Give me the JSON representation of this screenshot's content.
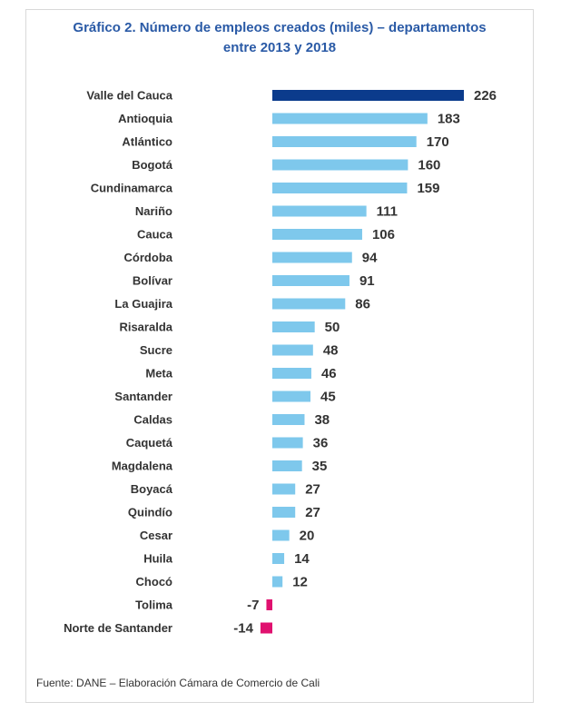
{
  "chart_data": {
    "type": "bar",
    "orientation": "horizontal",
    "title_line1": "Gráfico 2. Número de empleos creados (miles) – departamentos",
    "title_line2": "entre 2013 y 2018",
    "xlabel": "",
    "ylabel": "",
    "categories": [
      "Valle del Cauca",
      "Antioquia",
      "Atlántico",
      "Bogotá",
      "Cundinamarca",
      "Nariño",
      "Cauca",
      "Córdoba",
      "Bolívar",
      "La Guajira",
      "Risaralda",
      "Sucre",
      "Meta",
      "Santander",
      "Caldas",
      "Caquetá",
      "Magdalena",
      "Boyacá",
      "Quindío",
      "Cesar",
      "Huila",
      "Chocó",
      "Tolima",
      "Norte de Santander"
    ],
    "values": [
      226,
      183,
      170,
      160,
      159,
      111,
      106,
      94,
      91,
      86,
      50,
      48,
      46,
      45,
      38,
      36,
      35,
      27,
      27,
      20,
      14,
      12,
      -7,
      -14
    ],
    "colors": {
      "highlight": "#0b3b8c",
      "positive": "#7ec8ec",
      "negative": "#e0116f"
    },
    "highlight_category": "Valle del Cauca"
  },
  "source": "Fuente: DANE – Elaboración Cámara de Comercio de Cali"
}
